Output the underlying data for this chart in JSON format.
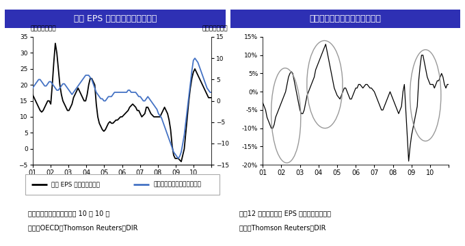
{
  "title_left": "予想 EPS と景気先行指数の変化",
  "title_right": "リビジョンインデックスの推移",
  "title_bg": "#2e30b4",
  "title_color": "#ffffff",
  "left_ylabel_left": "（前年比、％）",
  "left_ylabel_right": "（前年比、％）",
  "left_ylim": [
    -5,
    35
  ],
  "right_ylim": [
    -15,
    15
  ],
  "xlabels": [
    "01",
    "02",
    "03",
    "04",
    "05",
    "06",
    "07",
    "08",
    "09",
    "10",
    ""
  ],
  "note_left": "注：景気先行指数の直近は 10 年 10 月",
  "source_left": "出所：OECD、Thomson Reuters、DIR",
  "note_right": "注：12 カ月先行予想 EPS の伸び率との相関",
  "source_right": "出所：Thomson Reuters、DIR",
  "legend_eps": "予想 EPS 変化率（左軸）",
  "legend_cli": "景気先行指数変化率（右軸）",
  "eps_color": "#000000",
  "cli_color": "#4472c4",
  "ri_color": "#000000",
  "ellipse_color": "#999999"
}
